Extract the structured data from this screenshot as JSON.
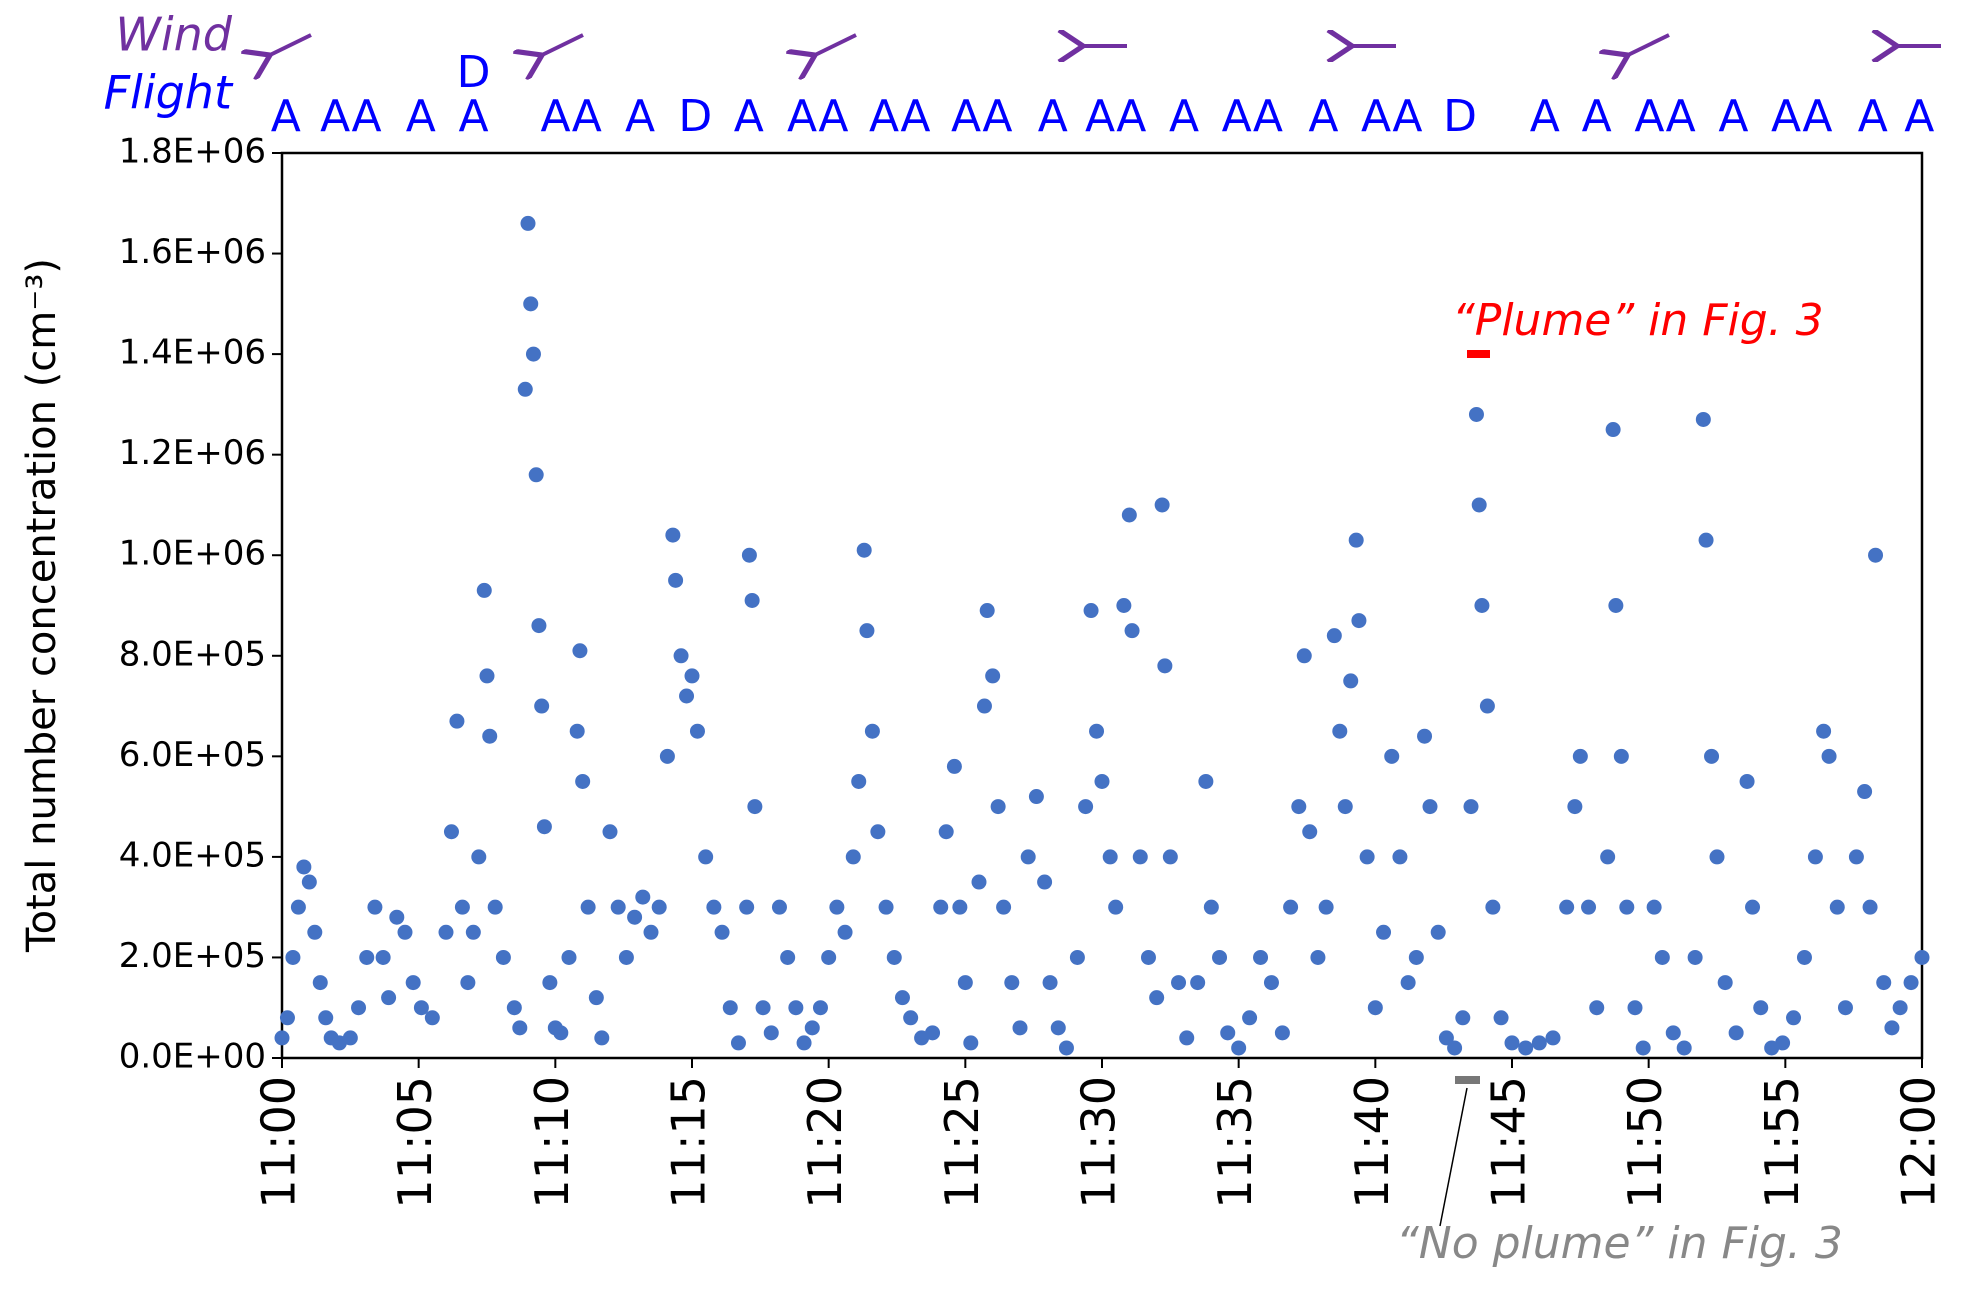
{
  "chart_data": {
    "type": "scatter",
    "ylabel": "Total number concentration (cm⁻³)",
    "wind_label": "Wind",
    "flight_title": "Flight",
    "color": "#4472c4",
    "flight_color": "#0000ff",
    "wind_color": "#7030a0",
    "annotations": [
      {
        "text": "“Plume” in Fig. 3",
        "color": "#ff0000"
      },
      {
        "text": "“No plume” in Fig. 3",
        "color": "#888888"
      }
    ],
    "flight_labels": [
      {
        "x": 660.14,
        "label": "A"
      },
      {
        "x": 662.52,
        "label": "AA"
      },
      {
        "x": 665.08,
        "label": "A"
      },
      {
        "x": 667.01,
        "label": "A"
      },
      {
        "x": 670.58,
        "label": "AA"
      },
      {
        "x": 673.1,
        "label": "A"
      },
      {
        "x": 675.12,
        "label": "D"
      },
      {
        "x": 677.08,
        "label": "A"
      },
      {
        "x": 679.6,
        "label": "AA"
      },
      {
        "x": 682.6,
        "label": "AA"
      },
      {
        "x": 685.6,
        "label": "AA"
      },
      {
        "x": 688.2,
        "label": "A"
      },
      {
        "x": 690.5,
        "label": "AA"
      },
      {
        "x": 693.0,
        "label": "A"
      },
      {
        "x": 695.5,
        "label": "AA"
      },
      {
        "x": 698.1,
        "label": "A"
      },
      {
        "x": 700.6,
        "label": "AA"
      },
      {
        "x": 703.1,
        "label": "D"
      },
      {
        "x": 706.2,
        "label": "A"
      },
      {
        "x": 708.1,
        "label": "A"
      },
      {
        "x": 710.6,
        "label": "AA"
      },
      {
        "x": 713.1,
        "label": "A"
      },
      {
        "x": 715.6,
        "label": "AA"
      },
      {
        "x": 718.2,
        "label": "A"
      },
      {
        "x": 719.9,
        "label": "A"
      }
    ],
    "flight_labels_above": [
      {
        "x": 667.01,
        "label": "D"
      }
    ],
    "xlim": [
      660,
      720
    ],
    "xticks": [
      {
        "value": 660,
        "label": "11:00"
      },
      {
        "value": 665,
        "label": "11:05"
      },
      {
        "value": 670,
        "label": "11:10"
      },
      {
        "value": 675,
        "label": "11:15"
      },
      {
        "value": 680,
        "label": "11:20"
      },
      {
        "value": 685,
        "label": "11:25"
      },
      {
        "value": 690,
        "label": "11:30"
      },
      {
        "value": 695,
        "label": "11:35"
      },
      {
        "value": 700,
        "label": "11:40"
      },
      {
        "value": 705,
        "label": "11:45"
      },
      {
        "value": 710,
        "label": "11:50"
      },
      {
        "value": 715,
        "label": "11:55"
      },
      {
        "value": 720,
        "label": "12:00"
      }
    ],
    "ylim": [
      0,
      1800000
    ],
    "yticks": [
      {
        "value": 0,
        "label": "0.0E+00"
      },
      {
        "value": 200000,
        "label": "2.0E+05"
      },
      {
        "value": 400000,
        "label": "4.0E+05"
      },
      {
        "value": 600000,
        "label": "6.0E+05"
      },
      {
        "value": 800000,
        "label": "8.0E+05"
      },
      {
        "value": 1000000,
        "label": "1.0E+06"
      },
      {
        "value": 1200000,
        "label": "1.2E+06"
      },
      {
        "value": 1400000,
        "label": "1.4E+06"
      },
      {
        "value": 1600000,
        "label": "1.6E+06"
      },
      {
        "value": 1800000,
        "label": "1.8E+06"
      }
    ],
    "x": [
      660.0,
      660.2,
      660.4,
      660.6,
      660.8,
      661.0,
      661.2,
      661.4,
      661.6,
      661.8,
      662.1,
      662.5,
      662.8,
      663.1,
      663.4,
      663.7,
      663.9,
      664.2,
      664.5,
      664.8,
      665.1,
      665.5,
      666.0,
      666.2,
      666.4,
      666.6,
      666.8,
      667.0,
      667.2,
      667.4,
      667.5,
      667.6,
      667.8,
      668.1,
      668.5,
      668.7,
      668.9,
      669.0,
      669.1,
      669.2,
      669.3,
      669.4,
      669.5,
      669.6,
      669.8,
      670.0,
      670.2,
      670.5,
      670.8,
      670.9,
      671.0,
      671.2,
      671.5,
      671.7,
      672.0,
      672.3,
      672.6,
      672.9,
      673.2,
      673.5,
      673.8,
      674.1,
      674.3,
      674.4,
      674.6,
      674.8,
      675.0,
      675.2,
      675.5,
      675.8,
      676.1,
      676.4,
      676.7,
      677.0,
      677.1,
      677.2,
      677.3,
      677.6,
      677.9,
      678.2,
      678.5,
      678.8,
      679.1,
      679.4,
      679.7,
      680.0,
      680.3,
      680.6,
      680.9,
      681.1,
      681.3,
      681.4,
      681.6,
      681.8,
      682.1,
      682.4,
      682.7,
      683.0,
      683.4,
      683.8,
      684.1,
      684.3,
      684.6,
      684.8,
      685.0,
      685.2,
      685.5,
      685.7,
      685.8,
      686.0,
      686.2,
      686.4,
      686.7,
      687.0,
      687.3,
      687.6,
      687.9,
      688.1,
      688.4,
      688.7,
      689.1,
      689.4,
      689.6,
      689.8,
      690.0,
      690.3,
      690.5,
      690.8,
      691.0,
      691.1,
      691.4,
      691.7,
      692.0,
      692.2,
      692.3,
      692.5,
      692.8,
      693.1,
      693.5,
      693.8,
      694.0,
      694.3,
      694.6,
      695.0,
      695.4,
      695.8,
      696.2,
      696.6,
      696.9,
      697.2,
      697.4,
      697.6,
      697.9,
      698.2,
      698.5,
      698.7,
      698.9,
      699.1,
      699.3,
      699.4,
      699.7,
      700.0,
      700.3,
      700.6,
      700.9,
      701.2,
      701.5,
      701.8,
      702.0,
      702.3,
      702.6,
      702.9,
      703.2,
      703.5,
      703.7,
      703.8,
      703.9,
      704.1,
      704.3,
      704.6,
      705.0,
      705.5,
      706.0,
      706.5,
      707.0,
      707.3,
      707.5,
      707.8,
      708.1,
      708.5,
      708.7,
      708.8,
      709.0,
      709.2,
      709.5,
      709.8,
      710.2,
      710.5,
      710.9,
      711.3,
      711.7,
      712.0,
      712.1,
      712.3,
      712.5,
      712.8,
      713.2,
      713.6,
      713.8,
      714.1,
      714.5,
      714.9,
      715.3,
      715.7,
      716.1,
      716.4,
      716.6,
      716.9,
      717.2,
      717.6,
      717.9,
      718.1,
      718.3,
      718.6,
      718.9,
      719.2,
      719.6,
      720.0
    ],
    "values": [
      40000,
      80000,
      200000,
      300000,
      380000,
      350000,
      250000,
      150000,
      80000,
      40000,
      30000,
      40000,
      100000,
      200000,
      300000,
      200000,
      120000,
      280000,
      250000,
      150000,
      100000,
      80000,
      250000,
      450000,
      670000,
      300000,
      150000,
      250000,
      400000,
      930000,
      760000,
      640000,
      300000,
      200000,
      100000,
      60000,
      1330000,
      1660000,
      1500000,
      1400000,
      1160000,
      860000,
      700000,
      460000,
      150000,
      60000,
      50000,
      200000,
      650000,
      810000,
      550000,
      300000,
      120000,
      40000,
      450000,
      300000,
      200000,
      280000,
      320000,
      250000,
      300000,
      600000,
      1040000,
      950000,
      800000,
      720000,
      760000,
      650000,
      400000,
      300000,
      250000,
      100000,
      30000,
      300000,
      1000000,
      910000,
      500000,
      100000,
      50000,
      300000,
      200000,
      100000,
      30000,
      60000,
      100000,
      200000,
      300000,
      250000,
      400000,
      550000,
      1010000,
      850000,
      650000,
      450000,
      300000,
      200000,
      120000,
      80000,
      40000,
      50000,
      300000,
      450000,
      580000,
      300000,
      150000,
      30000,
      350000,
      700000,
      890000,
      760000,
      500000,
      300000,
      150000,
      60000,
      400000,
      520000,
      350000,
      150000,
      60000,
      20000,
      200000,
      500000,
      890000,
      650000,
      550000,
      400000,
      300000,
      900000,
      1080000,
      850000,
      400000,
      200000,
      120000,
      1100000,
      780000,
      400000,
      150000,
      40000,
      150000,
      550000,
      300000,
      200000,
      50000,
      20000,
      80000,
      200000,
      150000,
      50000,
      300000,
      500000,
      800000,
      450000,
      200000,
      300000,
      840000,
      650000,
      500000,
      750000,
      1030000,
      870000,
      400000,
      100000,
      250000,
      600000,
      400000,
      150000,
      200000,
      640000,
      500000,
      250000,
      40000,
      20000,
      80000,
      500000,
      1280000,
      1100000,
      900000,
      700000,
      300000,
      80000,
      30000,
      20000,
      30000,
      40000,
      300000,
      500000,
      600000,
      300000,
      100000,
      400000,
      1250000,
      900000,
      600000,
      300000,
      100000,
      20000,
      300000,
      200000,
      50000,
      20000,
      200000,
      1270000,
      1030000,
      600000,
      400000,
      150000,
      50000,
      550000,
      300000,
      100000,
      20000,
      30000,
      80000,
      200000,
      400000,
      650000,
      600000,
      300000,
      100000,
      400000,
      530000,
      300000,
      1000000,
      150000,
      60000,
      100000,
      150000,
      200000
    ]
  }
}
